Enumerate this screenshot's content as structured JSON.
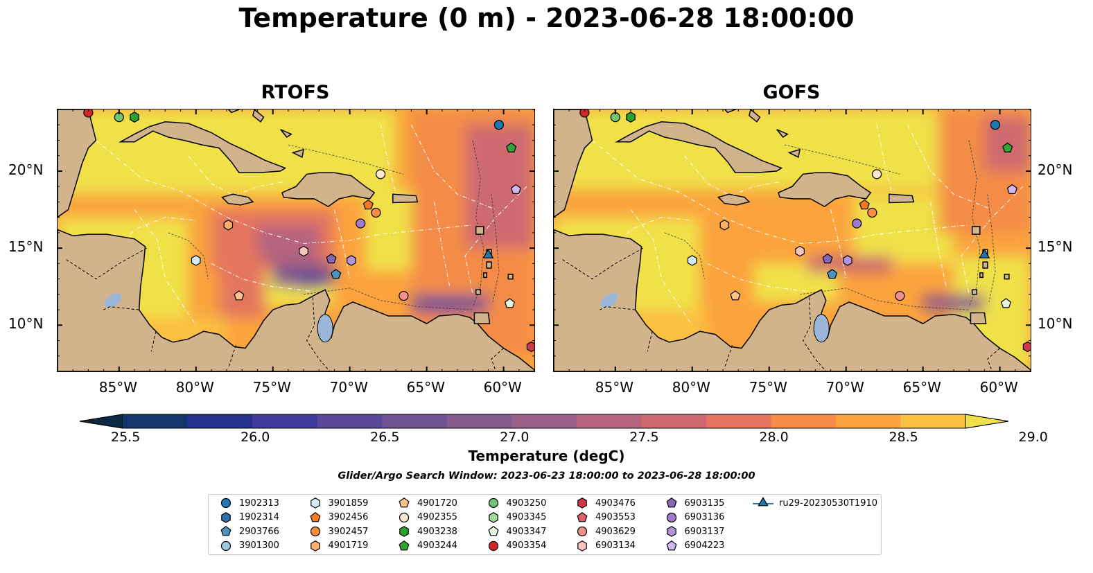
{
  "title": "Temperature (0 m) - 2023-06-28 18:00:00",
  "panels": [
    {
      "title": "RTOFS"
    },
    {
      "title": "GOFS"
    }
  ],
  "axes": {
    "lon_ticks": [
      "85°W",
      "80°W",
      "75°W",
      "70°W",
      "65°W",
      "60°W"
    ],
    "lat_ticks": [
      "20°N",
      "15°N",
      "10°N"
    ],
    "lon_range": [
      -89.0,
      -58.0
    ],
    "lat_range": [
      7.0,
      24.0
    ]
  },
  "colorbar": {
    "label": "Temperature (degC)",
    "ticks": [
      "25.5",
      "26.0",
      "26.5",
      "27.0",
      "27.5",
      "28.0",
      "28.5",
      "29.0"
    ],
    "range": [
      25.5,
      29.25
    ],
    "step": 0.25,
    "colors": [
      "#0b2945",
      "#14366b",
      "#252f8c",
      "#3d3a9c",
      "#5a4797",
      "#6f5290",
      "#855a8d",
      "#9a5f87",
      "#b5637f",
      "#cd6a6f",
      "#e4765f",
      "#f48c47",
      "#fba33e",
      "#fbbf42",
      "#f0e14a"
    ],
    "extend": "both"
  },
  "search_window": "Glider/Argo Search Window: 2023-06-23 18:00:00 to 2023-06-28 18:00:00",
  "colors": {
    "land": "#d2b48c",
    "lake": "#9bb6d9",
    "warm_fill": "#e8f55a"
  },
  "legend": [
    {
      "id": "1902313",
      "marker": "circle",
      "color": "#1f77b4"
    },
    {
      "id": "1902314",
      "marker": "hexagon",
      "color": "#2f6fa8"
    },
    {
      "id": "2903766",
      "marker": "pentagon",
      "color": "#4a90c0"
    },
    {
      "id": "3901300",
      "marker": "circle",
      "color": "#9ecae1"
    },
    {
      "id": "3901859",
      "marker": "hexagon",
      "color": "#d4ecf9"
    },
    {
      "id": "3902456",
      "marker": "pentagon",
      "color": "#f57b1d"
    },
    {
      "id": "3902457",
      "marker": "circle",
      "color": "#fd8d3c"
    },
    {
      "id": "4901719",
      "marker": "hexagon",
      "color": "#fdae6b"
    },
    {
      "id": "4901720",
      "marker": "pentagon",
      "color": "#fdc38d"
    },
    {
      "id": "4902355",
      "marker": "circle",
      "color": "#fee6ce"
    },
    {
      "id": "4903238",
      "marker": "hexagon",
      "color": "#2ca02c"
    },
    {
      "id": "4903244",
      "marker": "pentagon",
      "color": "#33a534"
    },
    {
      "id": "4903250",
      "marker": "circle",
      "color": "#74c476"
    },
    {
      "id": "4903345",
      "marker": "hexagon",
      "color": "#a1d99b"
    },
    {
      "id": "4903347",
      "marker": "pentagon",
      "color": "#e5f5e0"
    },
    {
      "id": "4903354",
      "marker": "circle",
      "color": "#d62728"
    },
    {
      "id": "4903476",
      "marker": "hexagon",
      "color": "#cb3a46"
    },
    {
      "id": "4903553",
      "marker": "pentagon",
      "color": "#e05f6a"
    },
    {
      "id": "4903629",
      "marker": "circle",
      "color": "#f0908a"
    },
    {
      "id": "6903134",
      "marker": "hexagon",
      "color": "#f9c5c2"
    },
    {
      "id": "6903135",
      "marker": "pentagon",
      "color": "#8766b5"
    },
    {
      "id": "6903136",
      "marker": "circle",
      "color": "#9e7ccb"
    },
    {
      "id": "6903137",
      "marker": "hexagon",
      "color": "#b394db"
    },
    {
      "id": "6904223",
      "marker": "pentagon",
      "color": "#d1b8ef"
    },
    {
      "id": "ru29-20230530T1910",
      "marker": "triangle",
      "color": "#1f77b4"
    }
  ],
  "platforms": [
    {
      "id": "4903354",
      "lon": -87.0,
      "lat": 23.8
    },
    {
      "id": "4903250",
      "lon": -85.0,
      "lat": 23.5
    },
    {
      "id": "4903238",
      "lon": -84.0,
      "lat": 23.5
    },
    {
      "id": "1902313",
      "lon": -60.3,
      "lat": 23.0
    },
    {
      "id": "4903244",
      "lon": -59.5,
      "lat": 21.5
    },
    {
      "id": "6904223",
      "lon": -59.2,
      "lat": 18.8
    },
    {
      "id": "4902355",
      "lon": -68.0,
      "lat": 19.8
    },
    {
      "id": "3902456",
      "lon": -68.8,
      "lat": 17.8
    },
    {
      "id": "3902457",
      "lon": -68.3,
      "lat": 17.3
    },
    {
      "id": "6903136",
      "lon": -69.3,
      "lat": 16.6
    },
    {
      "id": "4901719",
      "lon": -77.9,
      "lat": 16.5
    },
    {
      "id": "3901859",
      "lon": -80.0,
      "lat": 14.2
    },
    {
      "id": "6903134",
      "lon": -73.0,
      "lat": 14.8
    },
    {
      "id": "6903135",
      "lon": -71.2,
      "lat": 14.3
    },
    {
      "id": "6903137",
      "lon": -69.9,
      "lat": 14.2
    },
    {
      "id": "2903766",
      "lon": -70.9,
      "lat": 13.3
    },
    {
      "id": "4901720",
      "lon": -77.2,
      "lat": 11.9
    },
    {
      "id": "4903629",
      "lon": -66.5,
      "lat": 11.9
    },
    {
      "id": "4903347",
      "lon": -59.6,
      "lat": 11.4
    },
    {
      "id": "4903476",
      "lon": -58.2,
      "lat": 8.6
    },
    {
      "id": "ru29-20230530T1910",
      "lon": -61.0,
      "lat": 14.5
    }
  ]
}
